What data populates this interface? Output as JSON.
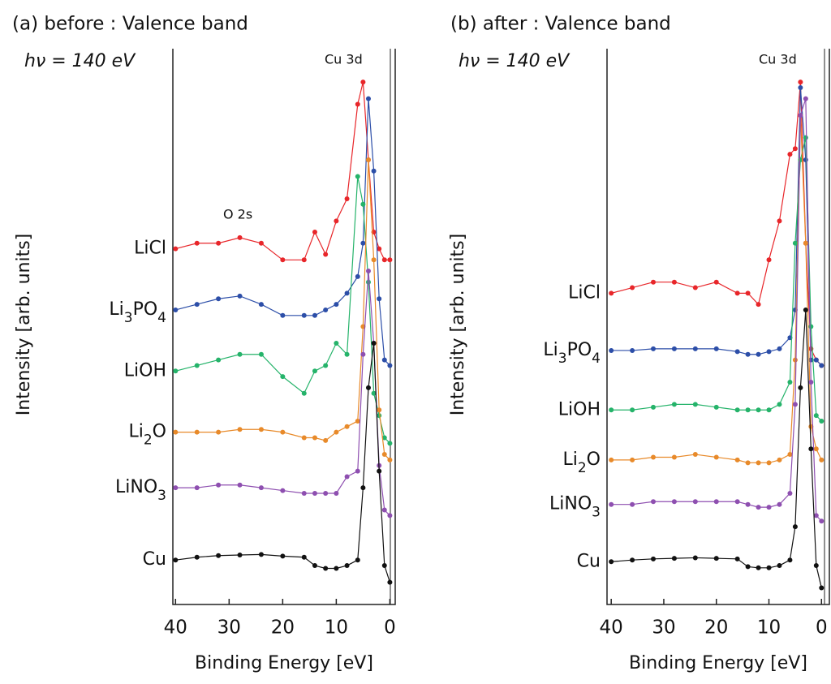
{
  "chart_data": [
    {
      "type": "line",
      "title": "(a) before : Valence band",
      "annotations": [
        "hν = 140 eV",
        "Cu 3d",
        "O 2s"
      ],
      "x_label": "Binding Energy [eV]",
      "y_label": "Intensity [arb. units]",
      "xlim": [
        40.5,
        -1
      ],
      "xticks": [
        40,
        30,
        20,
        10,
        0
      ],
      "ylim": [
        0,
        100
      ],
      "x": [
        40,
        36,
        32,
        28,
        24,
        20,
        16,
        14,
        12,
        10,
        8,
        6,
        5,
        4,
        3,
        2,
        1,
        0
      ],
      "series": [
        {
          "name": "LiCl",
          "color": "#e8262a",
          "values": [
            64,
            65,
            65,
            66,
            65,
            62,
            62,
            67,
            63,
            69,
            73,
            90,
            94,
            80,
            67,
            64,
            62,
            62
          ]
        },
        {
          "name": "Li3PO4",
          "color": "#2c4ea8",
          "values": [
            53,
            54,
            55,
            55.5,
            54,
            52,
            52,
            52,
            53,
            54,
            56,
            59,
            65,
            91,
            78,
            55,
            44,
            43
          ]
        },
        {
          "name": "LiOH",
          "color": "#25b36a",
          "values": [
            42,
            43,
            44,
            45,
            45,
            41,
            38,
            42,
            43,
            47,
            45,
            77,
            72,
            58,
            38,
            34,
            30,
            29
          ]
        },
        {
          "name": "Li2O",
          "color": "#e88a2a",
          "values": [
            31,
            31,
            31,
            31.5,
            31.5,
            31,
            30,
            30,
            29.5,
            31,
            32,
            33,
            50,
            80,
            62,
            35,
            27,
            26
          ]
        },
        {
          "name": "LiNO3",
          "color": "#8e4fb0",
          "values": [
            21,
            21,
            21.5,
            21.5,
            21,
            20.5,
            20,
            20,
            20,
            20,
            23,
            24,
            45,
            60,
            47,
            25,
            17,
            16
          ]
        },
        {
          "name": "Cu",
          "color": "#111111",
          "values": [
            8,
            8.5,
            8.8,
            8.9,
            9,
            8.7,
            8.5,
            7,
            6.5,
            6.5,
            7,
            8,
            21,
            39,
            47,
            24,
            7,
            4
          ]
        }
      ]
    },
    {
      "type": "line",
      "title": "(b) after : Valence band",
      "annotations": [
        "hν = 140 eV",
        "Cu 3d"
      ],
      "x_label": "Binding Energy [eV]",
      "y_label": "Intensity [arb. units]",
      "xlim": [
        40.8,
        -1.5
      ],
      "xticks": [
        40,
        30,
        20,
        10,
        0
      ],
      "ylim": [
        0,
        100
      ],
      "x": [
        40,
        36,
        32,
        28,
        24,
        20,
        16,
        14,
        12,
        10,
        8,
        6,
        5,
        4,
        3,
        2,
        1,
        0
      ],
      "series": [
        {
          "name": "LiCl",
          "color": "#e8262a",
          "values": [
            56,
            57,
            58,
            58,
            57,
            58,
            56,
            56,
            54,
            62,
            69,
            81,
            82,
            94,
            65,
            46,
            44,
            43
          ]
        },
        {
          "name": "Li3PO4",
          "color": "#2c4ea8",
          "values": [
            45.7,
            45.7,
            46,
            46,
            46,
            46,
            45.5,
            45,
            45,
            45.5,
            46,
            48,
            53,
            93,
            80,
            44,
            44,
            43
          ]
        },
        {
          "name": "LiOH",
          "color": "#25b36a",
          "values": [
            35,
            35,
            35.5,
            36,
            36,
            35.5,
            35,
            35,
            35,
            35,
            36,
            40,
            65,
            80,
            84,
            50,
            34,
            33
          ]
        },
        {
          "name": "Li2O",
          "color": "#e88a2a",
          "values": [
            26,
            26,
            26.5,
            26.5,
            27,
            26.5,
            26,
            25.5,
            25.5,
            25.5,
            26,
            27,
            44,
            88,
            65,
            32,
            28,
            26
          ]
        },
        {
          "name": "LiNO3",
          "color": "#8e4fb0",
          "values": [
            18,
            18,
            18.5,
            18.5,
            18.5,
            18.5,
            18.5,
            18,
            17.5,
            17.5,
            18,
            20,
            36,
            88,
            91,
            40,
            16,
            15
          ]
        },
        {
          "name": "Cu",
          "color": "#111111",
          "values": [
            7.7,
            8,
            8.2,
            8.3,
            8.4,
            8.3,
            8.2,
            6.8,
            6.6,
            6.6,
            7,
            8,
            14,
            39,
            53,
            28,
            7,
            3
          ]
        }
      ]
    }
  ]
}
